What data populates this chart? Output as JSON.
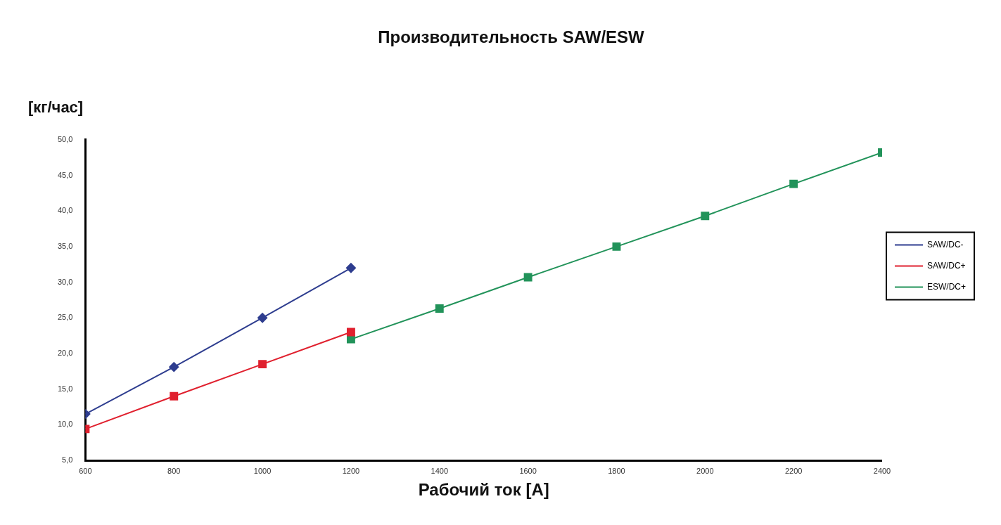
{
  "chart_data": {
    "type": "line",
    "title": "Производительность SAW/ESW",
    "xlabel": "Рабочий ток [А]",
    "ylabel": "[кг/час]",
    "xlim": [
      600,
      2400
    ],
    "xticks": [
      600,
      800,
      1000,
      1200,
      1400,
      1600,
      1800,
      2000,
      2200,
      2400
    ],
    "ylim": [
      5,
      50
    ],
    "yticks": [
      {
        "value": 5,
        "label": "5,0"
      },
      {
        "value": 10,
        "label": "10,0"
      },
      {
        "value": 15,
        "label": "15,0"
      },
      {
        "value": 20,
        "label": "20,0"
      },
      {
        "value": 25,
        "label": "25,0"
      },
      {
        "value": 30,
        "label": "30,0"
      },
      {
        "value": 35,
        "label": "35,0"
      },
      {
        "value": 40,
        "label": "40,0"
      },
      {
        "value": 45,
        "label": "45,0"
      },
      {
        "value": 50,
        "label": "50,0"
      }
    ],
    "grid": false,
    "legend": "right",
    "line_style": "solid",
    "series": [
      {
        "name": "SAW/DC-",
        "color": "#2e3d8f",
        "marker": "diamond",
        "x": [
          600,
          800,
          1000,
          1200
        ],
        "values": [
          11.5,
          18.1,
          25,
          32
        ]
      },
      {
        "name": "SAW/DC+",
        "color": "#e0202e",
        "marker": "square",
        "x": [
          600,
          800,
          1000,
          1200
        ],
        "values": [
          9.4,
          14,
          18.5,
          23
        ]
      },
      {
        "name": "ESW/DC+",
        "color": "#22935a",
        "marker": "square",
        "x": [
          1200,
          1400,
          1600,
          1800,
          2000,
          2200,
          2400
        ],
        "values": [
          22,
          26.3,
          30.7,
          35,
          39.3,
          43.8,
          48.2
        ]
      }
    ]
  }
}
